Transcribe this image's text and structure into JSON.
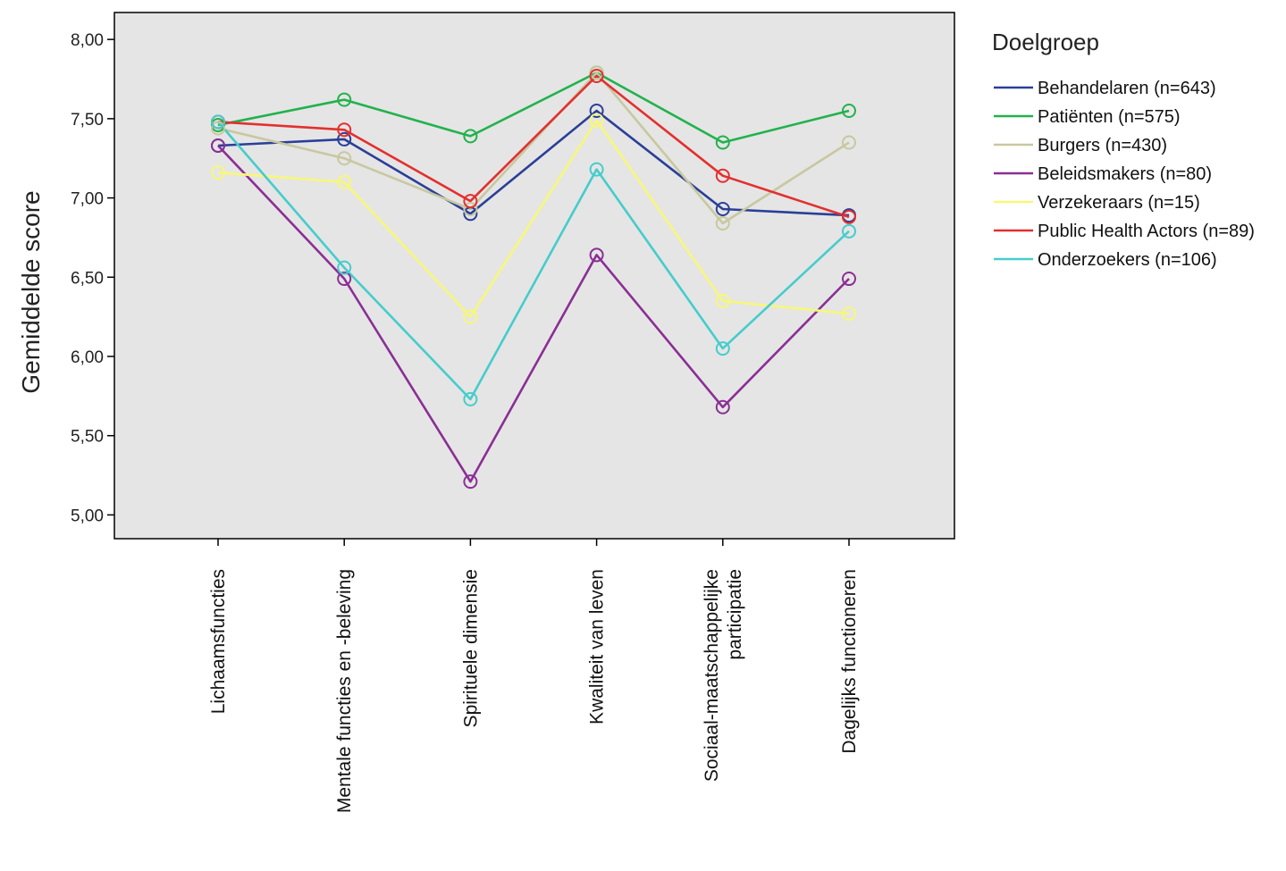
{
  "chart_data": {
    "type": "line",
    "ylabel": "Gemiddelde score",
    "xlabel": "",
    "categories": [
      "Lichaamsfuncties",
      "Mentale functies en -beleving",
      "Spirituele dimensie",
      "Kwaliteit van leven",
      "Sociaal-maatschappelijke participatie",
      "Dagelijks functioneren"
    ],
    "ylim": [
      4.85,
      8.17
    ],
    "yticks": [
      "5,00",
      "5,50",
      "6,00",
      "6,50",
      "7,00",
      "7,50",
      "8,00"
    ],
    "ytick_values": [
      5.0,
      5.5,
      6.0,
      6.5,
      7.0,
      7.5,
      8.0
    ],
    "grid": false,
    "legend": {
      "title": "Doelgroep",
      "placement": "right"
    },
    "series": [
      {
        "name": "Behandelaren (n=643)",
        "color": "#2a3f98",
        "values": [
          7.33,
          7.37,
          6.9,
          7.55,
          6.93,
          6.89
        ]
      },
      {
        "name": "Patiënten (n=575)",
        "color": "#22b24c",
        "values": [
          7.46,
          7.62,
          7.39,
          7.79,
          7.35,
          7.55
        ]
      },
      {
        "name": "Burgers (n=430)",
        "color": "#c8c8a0",
        "values": [
          7.44,
          7.25,
          6.93,
          7.79,
          6.84,
          7.35
        ]
      },
      {
        "name": "Beleidsmakers (n=80)",
        "color": "#8a2f94",
        "values": [
          7.33,
          6.49,
          5.21,
          6.64,
          5.68,
          6.49
        ]
      },
      {
        "name": "Verzekeraars (n=15)",
        "color": "#f7f77a",
        "values": [
          7.16,
          7.1,
          6.25,
          7.49,
          6.35,
          6.27
        ]
      },
      {
        "name": "Public Health Actors (n=89)",
        "color": "#e3302f",
        "values": [
          7.48,
          7.43,
          6.98,
          7.77,
          7.14,
          6.88
        ]
      },
      {
        "name": "Onderzoekers (n=106)",
        "color": "#46cccc",
        "values": [
          7.48,
          6.56,
          5.73,
          7.18,
          6.05,
          6.79
        ]
      }
    ]
  },
  "colors": {
    "plot_background": "#e5e5e5",
    "axis": "#000000"
  }
}
